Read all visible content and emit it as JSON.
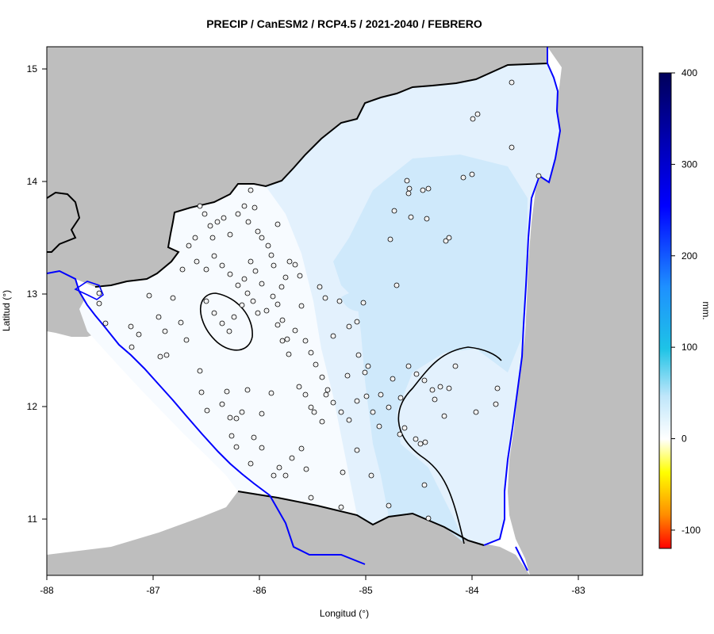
{
  "title": "PRECIP / CanESM2 / RCP4.5 / 2021-2040 / FEBRERO",
  "map": {
    "xlabel": "Longitud (°)",
    "ylabel": "Latitud (°)",
    "xlim": [
      -88,
      -82.4
    ],
    "ylim": [
      10.5,
      15.2
    ],
    "xticks": [
      -88,
      -87,
      -86,
      -85,
      -84,
      -83
    ],
    "yticks": [
      11,
      12,
      13,
      14,
      15
    ]
  },
  "colorbar": {
    "label": "mm.",
    "range": [
      -120,
      400
    ],
    "ticks": [
      -100,
      0,
      100,
      200,
      300,
      400
    ]
  },
  "colors": {
    "land_outside": "#bebebe",
    "sea": "#ffffff",
    "border": "#000000",
    "coast": "#0000ff",
    "field_base": "#f7fbff",
    "field_light": "#e3f1fd",
    "field_medium": "#cce8fb"
  }
}
